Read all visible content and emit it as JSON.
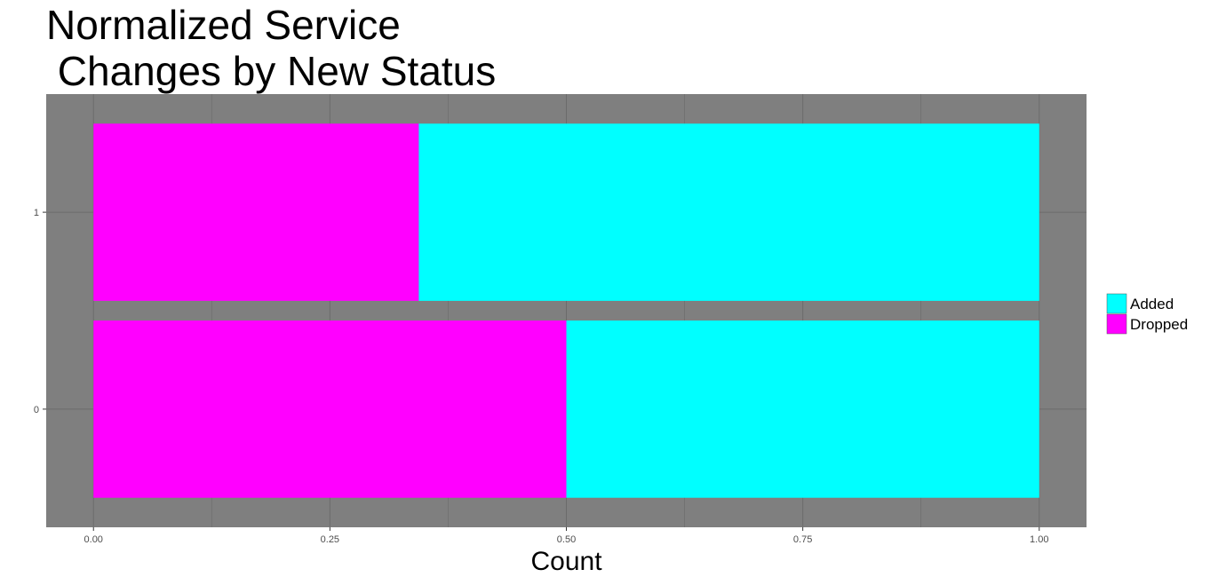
{
  "chart_data": {
    "type": "bar",
    "orientation": "horizontal",
    "stacked": true,
    "title": "Normalized Service\n Changes by New Status",
    "xlabel": "Count",
    "ylabel": "",
    "categories": [
      "0",
      "1"
    ],
    "series": [
      {
        "name": "Dropped",
        "values": [
          0.5,
          0.344
        ],
        "color": "#ff00ff"
      },
      {
        "name": "Added",
        "values": [
          0.5,
          0.656
        ],
        "color": "#00ffff"
      }
    ],
    "xlim": [
      -0.05,
      1.05
    ],
    "x_ticks": [
      "0.00",
      "0.25",
      "0.50",
      "0.75",
      "1.00"
    ],
    "grid": true,
    "panel_background": "#7f7f7f",
    "grid_color": "#6b6b6b",
    "legend": {
      "position": "right",
      "entries": [
        "Added",
        "Dropped"
      ]
    }
  }
}
